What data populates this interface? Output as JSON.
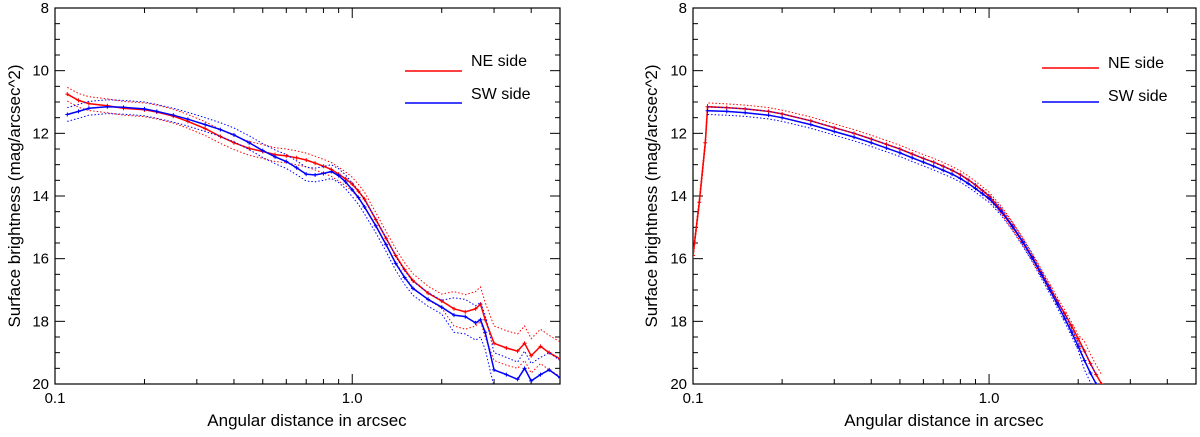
{
  "chart_data": [
    {
      "type": "line",
      "xscale": "log",
      "xlim": [
        0.1,
        5.0
      ],
      "ylim": [
        20,
        8
      ],
      "xlabel": "Angular distance in arcsec",
      "ylabel": "Surface brightness (mag/arcsec^2)",
      "xticks": [
        {
          "value": 0.1,
          "label": "0.1"
        },
        {
          "value": 1.0,
          "label": "1.0"
        }
      ],
      "yticks": [
        {
          "value": 8,
          "label": "8"
        },
        {
          "value": 10,
          "label": "10"
        },
        {
          "value": 12,
          "label": "12"
        },
        {
          "value": 14,
          "label": "14"
        },
        {
          "value": 16,
          "label": "16"
        },
        {
          "value": 18,
          "label": "18"
        },
        {
          "value": 20,
          "label": "20"
        }
      ],
      "legend_position": "top-right",
      "series": [
        {
          "name": "NE side",
          "label": "NE side",
          "color": "#ff0000",
          "x": [
            0.11,
            0.12,
            0.13,
            0.15,
            0.17,
            0.2,
            0.22,
            0.25,
            0.28,
            0.32,
            0.36,
            0.4,
            0.45,
            0.5,
            0.55,
            0.6,
            0.65,
            0.7,
            0.75,
            0.8,
            0.85,
            0.9,
            0.95,
            1.0,
            1.05,
            1.1,
            1.2,
            1.3,
            1.4,
            1.5,
            1.6,
            1.8,
            2.0,
            2.2,
            2.4,
            2.6,
            2.7,
            2.8,
            3.0,
            3.3,
            3.6,
            3.8,
            4.0,
            4.3,
            4.6,
            5.0
          ],
          "y": [
            10.75,
            10.95,
            11.05,
            11.12,
            11.2,
            11.25,
            11.32,
            11.45,
            11.62,
            11.85,
            12.1,
            12.3,
            12.48,
            12.58,
            12.68,
            12.72,
            12.78,
            12.85,
            12.95,
            13.05,
            13.15,
            13.3,
            13.45,
            13.62,
            13.85,
            14.1,
            14.75,
            15.35,
            15.9,
            16.35,
            16.7,
            17.1,
            17.35,
            17.6,
            17.7,
            17.6,
            17.45,
            17.95,
            18.7,
            18.85,
            18.95,
            18.7,
            19.1,
            18.8,
            19.0,
            19.2
          ]
        },
        {
          "name": "SW side",
          "label": "SW side",
          "color": "#0000ff",
          "x": [
            0.11,
            0.12,
            0.13,
            0.15,
            0.17,
            0.2,
            0.22,
            0.25,
            0.28,
            0.32,
            0.36,
            0.4,
            0.45,
            0.5,
            0.55,
            0.6,
            0.65,
            0.7,
            0.75,
            0.8,
            0.85,
            0.9,
            0.95,
            1.0,
            1.05,
            1.1,
            1.2,
            1.3,
            1.4,
            1.5,
            1.6,
            1.8,
            2.0,
            2.2,
            2.4,
            2.6,
            2.7,
            2.8,
            3.0,
            3.3,
            3.6,
            3.8,
            4.0,
            4.3,
            4.6,
            5.0
          ],
          "y": [
            11.4,
            11.3,
            11.2,
            11.15,
            11.17,
            11.22,
            11.3,
            11.42,
            11.55,
            11.72,
            11.88,
            12.05,
            12.3,
            12.55,
            12.75,
            12.9,
            13.1,
            13.3,
            13.33,
            13.28,
            13.22,
            13.35,
            13.55,
            13.8,
            14.05,
            14.35,
            14.95,
            15.55,
            16.15,
            16.6,
            16.95,
            17.3,
            17.55,
            17.8,
            17.85,
            18.05,
            17.95,
            18.35,
            19.55,
            19.7,
            19.85,
            19.5,
            19.9,
            19.7,
            19.55,
            19.8
          ]
        }
      ]
    },
    {
      "type": "line",
      "xscale": "log",
      "xlim": [
        0.1,
        5.0
      ],
      "ylim": [
        20,
        8
      ],
      "xlabel": "Angular distance in arcsec",
      "ylabel": "Surface brightness (mag/arcsec^2)",
      "xticks": [
        {
          "value": 0.1,
          "label": "0.1"
        },
        {
          "value": 1.0,
          "label": "1.0"
        }
      ],
      "yticks": [
        {
          "value": 8,
          "label": "8"
        },
        {
          "value": 10,
          "label": "10"
        },
        {
          "value": 12,
          "label": "12"
        },
        {
          "value": 14,
          "label": "14"
        },
        {
          "value": 16,
          "label": "16"
        },
        {
          "value": 18,
          "label": "18"
        },
        {
          "value": 20,
          "label": "20"
        }
      ],
      "legend_position": "top-right",
      "series": [
        {
          "name": "NE side",
          "label": "NE side",
          "color": "#ff0000",
          "x": [
            0.1,
            0.105,
            0.11,
            0.112,
            0.13,
            0.15,
            0.18,
            0.2,
            0.25,
            0.3,
            0.35,
            0.4,
            0.45,
            0.5,
            0.55,
            0.6,
            0.65,
            0.7,
            0.75,
            0.8,
            0.85,
            0.9,
            0.95,
            1.0,
            1.1,
            1.2,
            1.3,
            1.4,
            1.5,
            1.6,
            1.7,
            1.8,
            1.9,
            2.0,
            2.1,
            2.2,
            2.3,
            2.4
          ],
          "y": [
            15.9,
            14.2,
            12.3,
            11.15,
            11.18,
            11.22,
            11.3,
            11.38,
            11.6,
            11.82,
            12.0,
            12.18,
            12.35,
            12.5,
            12.66,
            12.8,
            12.92,
            13.05,
            13.18,
            13.32,
            13.48,
            13.65,
            13.83,
            14.0,
            14.45,
            14.95,
            15.45,
            15.95,
            16.45,
            16.9,
            17.35,
            17.75,
            18.15,
            18.55,
            18.95,
            19.35,
            19.7,
            20.0
          ]
        },
        {
          "name": "SW side",
          "label": "SW side",
          "color": "#0000ff",
          "x": [
            0.112,
            0.13,
            0.15,
            0.18,
            0.2,
            0.25,
            0.3,
            0.35,
            0.4,
            0.45,
            0.5,
            0.55,
            0.6,
            0.65,
            0.7,
            0.75,
            0.8,
            0.85,
            0.9,
            0.95,
            1.0,
            1.1,
            1.2,
            1.3,
            1.4,
            1.5,
            1.6,
            1.7,
            1.8,
            1.9,
            2.0,
            2.1,
            2.2,
            2.3
          ],
          "y": [
            11.28,
            11.3,
            11.34,
            11.42,
            11.5,
            11.72,
            11.94,
            12.12,
            12.3,
            12.47,
            12.62,
            12.78,
            12.92,
            13.05,
            13.18,
            13.3,
            13.44,
            13.6,
            13.76,
            13.93,
            14.08,
            14.5,
            14.98,
            15.48,
            15.98,
            16.5,
            16.98,
            17.45,
            17.9,
            18.35,
            18.8,
            19.25,
            19.65,
            20.0
          ]
        }
      ]
    }
  ]
}
